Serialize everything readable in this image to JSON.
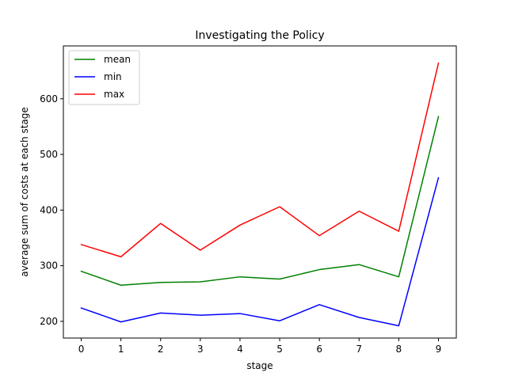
{
  "chart_data": {
    "type": "line",
    "title": "Investigating the Policy",
    "xlabel": "stage",
    "ylabel": "average sum of costs at each stage",
    "x": [
      0,
      1,
      2,
      3,
      4,
      5,
      6,
      7,
      8,
      9
    ],
    "xlim": [
      -0.45,
      9.45
    ],
    "ylim": [
      170,
      695
    ],
    "xticks": [
      "0",
      "1",
      "2",
      "3",
      "4",
      "5",
      "6",
      "7",
      "8",
      "9"
    ],
    "yticks": [
      200,
      300,
      400,
      500,
      600
    ],
    "grid": false,
    "legend_position": "upper-left",
    "series": [
      {
        "name": "mean",
        "color": "#008000",
        "values": [
          290,
          265,
          270,
          271,
          280,
          276,
          293,
          302,
          280,
          568
        ]
      },
      {
        "name": "min",
        "color": "#0000ff",
        "values": [
          224,
          199,
          215,
          211,
          214,
          201,
          230,
          207,
          192,
          458
        ]
      },
      {
        "name": "max",
        "color": "#ff0000",
        "values": [
          338,
          316,
          376,
          328,
          373,
          406,
          354,
          398,
          362,
          664
        ]
      }
    ]
  }
}
